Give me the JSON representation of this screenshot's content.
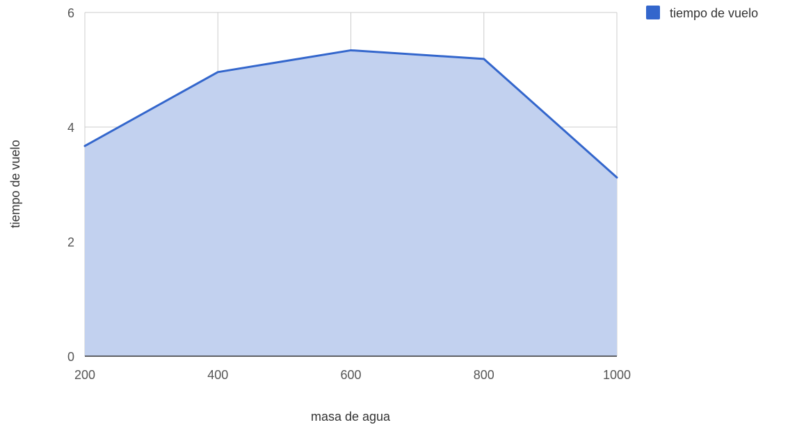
{
  "chart_data": {
    "type": "area",
    "x": [
      200,
      400,
      600,
      800,
      1000
    ],
    "series": [
      {
        "name": "tiempo de vuelo",
        "values": [
          3.67,
          4.96,
          5.34,
          5.19,
          3.12
        ],
        "color": "#3366cc"
      }
    ],
    "xlabel": "masa de agua",
    "ylabel": "tiempo de vuelo",
    "xlim": [
      200,
      1000
    ],
    "ylim": [
      0,
      6
    ],
    "x_ticks": [
      "200",
      "400",
      "600",
      "800",
      "1000"
    ],
    "y_ticks": [
      "0",
      "2",
      "4",
      "6"
    ],
    "grid": true,
    "legend_position": "top-right",
    "colors": {
      "line": "#3366cc",
      "fill": "#c2d1ef",
      "grid": "#cccccc",
      "baseline": "#333333"
    }
  }
}
